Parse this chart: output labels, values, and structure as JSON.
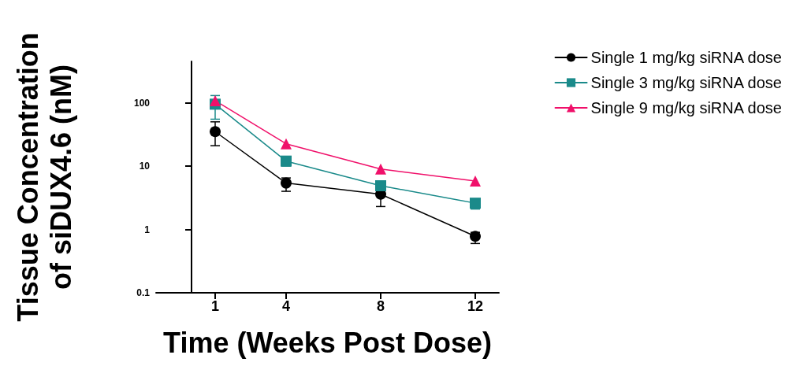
{
  "chart_data": {
    "type": "line",
    "xlabel": "Time (Weeks Post Dose)",
    "ylabel": "Tissue Concentration\nof siDUX4.6 (nM)",
    "x": [
      1,
      4,
      8,
      12
    ],
    "xlim": [
      -1.5,
      13
    ],
    "xticks": [
      1,
      4,
      8,
      12
    ],
    "ylim": [
      0.1,
      450
    ],
    "yticks": [
      0.1,
      1,
      10,
      100
    ],
    "log": true,
    "grid": false,
    "legend": "top right",
    "line_style": "solid",
    "series": [
      {
        "name": "Single 1 mg/kg siRNA dose",
        "color": "#000000",
        "marker": "circle",
        "values": [
          35,
          5.4,
          3.6,
          0.78
        ],
        "errors": [
          [
            21,
            50
          ],
          [
            4,
            6.5
          ],
          [
            2.3,
            3.6
          ],
          [
            0.6,
            0.9
          ]
        ]
      },
      {
        "name": "Single 3 mg/kg siRNA dose",
        "color": "#1a8a8a",
        "marker": "square",
        "values": [
          95,
          12,
          4.9,
          2.6
        ],
        "errors": [
          [
            55,
            130
          ],
          [
            10,
            13.5
          ],
          [
            4.3,
            5.5
          ],
          [
            2.1,
            3
          ]
        ]
      },
      {
        "name": "Single 9 mg/kg siRNA dose",
        "color": "#f0106a",
        "marker": "triangle",
        "values": [
          108,
          22.5,
          9,
          5.8
        ],
        "errors": [
          null,
          null,
          null,
          null
        ]
      }
    ]
  }
}
